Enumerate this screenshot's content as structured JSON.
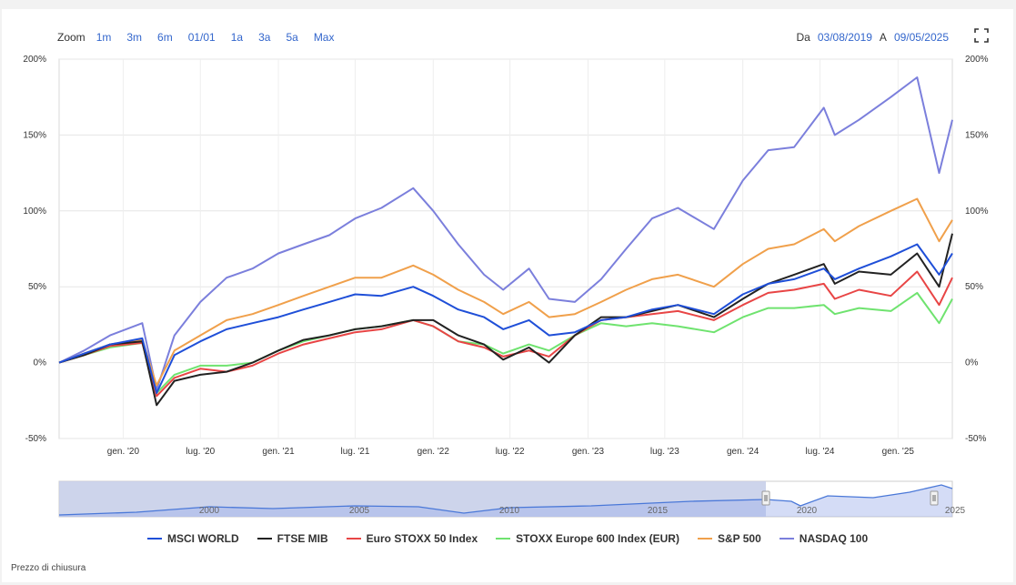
{
  "toolbar": {
    "zoom_label": "Zoom",
    "zoom_options": [
      "1m",
      "3m",
      "6m",
      "01/01",
      "1a",
      "3a",
      "5a",
      "Max"
    ]
  },
  "range": {
    "from_label": "Da",
    "from_date": "03/08/2019",
    "to_label": "A",
    "to_date": "09/05/2025"
  },
  "footer_note": "Prezzo di chiusura",
  "navigator": {
    "labels": [
      "2000",
      "2005",
      "2010",
      "2015",
      "2020",
      "2025"
    ]
  },
  "chart_data": {
    "type": "line",
    "title": "",
    "xlabel": "",
    "ylabel": "",
    "x_tick_labels": [
      "gen. '20",
      "lug. '20",
      "gen. '21",
      "lug. '21",
      "gen. '22",
      "lug. '22",
      "gen. '23",
      "lug. '23",
      "gen. '24",
      "lug. '24",
      "gen. '25"
    ],
    "x_tick_dates": [
      "2020-01-01",
      "2020-07-01",
      "2021-01-01",
      "2021-07-01",
      "2022-01-01",
      "2022-07-01",
      "2023-01-01",
      "2023-07-01",
      "2024-01-01",
      "2024-07-01",
      "2025-01-01"
    ],
    "y_tick_labels": [
      "200%",
      "150%",
      "100%",
      "50%",
      "0%",
      "-50%"
    ],
    "y_ticks": [
      200,
      150,
      100,
      50,
      0,
      -50
    ],
    "ylim": [
      -50,
      200
    ],
    "xlim": [
      "2019-08-03",
      "2025-05-09"
    ],
    "grid": true,
    "legend_position": "bottom",
    "x": [
      "2019-08-03",
      "2019-10-01",
      "2019-12-01",
      "2020-02-15",
      "2020-03-20",
      "2020-05-01",
      "2020-07-01",
      "2020-09-01",
      "2020-11-01",
      "2021-01-01",
      "2021-03-01",
      "2021-05-01",
      "2021-07-01",
      "2021-09-01",
      "2021-11-15",
      "2022-01-01",
      "2022-03-01",
      "2022-05-01",
      "2022-06-15",
      "2022-08-15",
      "2022-10-01",
      "2022-12-01",
      "2023-02-01",
      "2023-04-01",
      "2023-06-01",
      "2023-08-01",
      "2023-10-25",
      "2024-01-01",
      "2024-03-01",
      "2024-05-01",
      "2024-07-10",
      "2024-08-05",
      "2024-10-01",
      "2024-12-15",
      "2025-02-15",
      "2025-04-08",
      "2025-05-09"
    ],
    "series": [
      {
        "name": "MSCI WORLD",
        "color": "#1f4fd8",
        "values": [
          0,
          6,
          12,
          16,
          -20,
          5,
          14,
          22,
          26,
          30,
          35,
          40,
          45,
          44,
          50,
          44,
          35,
          30,
          22,
          28,
          18,
          20,
          28,
          30,
          35,
          38,
          32,
          45,
          52,
          55,
          62,
          55,
          62,
          70,
          78,
          58,
          72
        ]
      },
      {
        "name": "FTSE MIB",
        "color": "#222222",
        "values": [
          0,
          5,
          12,
          14,
          -28,
          -12,
          -8,
          -6,
          0,
          8,
          15,
          18,
          22,
          24,
          28,
          28,
          18,
          12,
          2,
          10,
          0,
          18,
          30,
          30,
          34,
          38,
          30,
          42,
          52,
          58,
          65,
          52,
          60,
          58,
          72,
          50,
          85
        ]
      },
      {
        "name": "Euro STOXX 50 Index",
        "color": "#e84545",
        "values": [
          0,
          5,
          11,
          13,
          -22,
          -10,
          -4,
          -6,
          -2,
          6,
          12,
          16,
          20,
          22,
          28,
          24,
          14,
          10,
          4,
          8,
          4,
          18,
          28,
          30,
          32,
          34,
          28,
          38,
          46,
          48,
          52,
          42,
          48,
          44,
          60,
          38,
          56
        ]
      },
      {
        "name": "STOXX Europe 600 Index (EUR)",
        "color": "#6fe36f",
        "values": [
          0,
          5,
          10,
          13,
          -20,
          -8,
          -2,
          -2,
          0,
          8,
          14,
          18,
          22,
          24,
          28,
          24,
          14,
          12,
          6,
          12,
          8,
          18,
          26,
          24,
          26,
          24,
          20,
          30,
          36,
          36,
          38,
          32,
          36,
          34,
          46,
          26,
          42
        ]
      },
      {
        "name": "S&P 500",
        "color": "#f0a04b",
        "values": [
          0,
          6,
          12,
          15,
          -15,
          8,
          18,
          28,
          32,
          38,
          44,
          50,
          56,
          56,
          64,
          58,
          48,
          40,
          32,
          40,
          30,
          32,
          40,
          48,
          55,
          58,
          50,
          65,
          75,
          78,
          88,
          80,
          90,
          100,
          108,
          80,
          94
        ]
      },
      {
        "name": "NASDAQ 100",
        "color": "#7b7fdc",
        "values": [
          0,
          8,
          18,
          26,
          -18,
          18,
          40,
          56,
          62,
          72,
          78,
          84,
          95,
          102,
          115,
          100,
          78,
          58,
          48,
          62,
          42,
          40,
          55,
          75,
          95,
          102,
          88,
          120,
          140,
          142,
          168,
          150,
          160,
          175,
          188,
          125,
          160
        ]
      }
    ]
  }
}
